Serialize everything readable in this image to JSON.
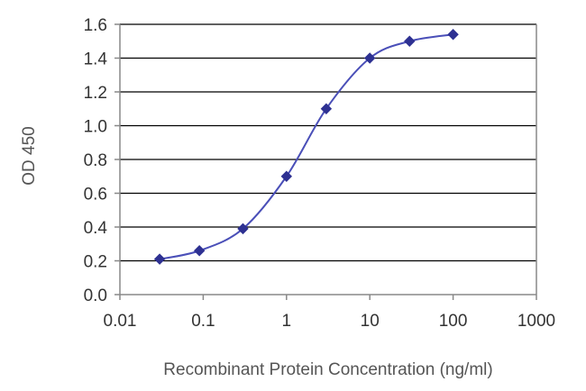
{
  "chart_data": {
    "type": "scatter",
    "title": "",
    "xlabel": "Recombinant Protein Concentration (ng/ml)",
    "ylabel": "OD 450",
    "x_scale": "log",
    "xlim": [
      0.01,
      1000
    ],
    "ylim": [
      0.0,
      1.6
    ],
    "x_ticks": [
      "0.01",
      "0.1",
      "1",
      "10",
      "100",
      "1000"
    ],
    "x_tick_values": [
      0.01,
      0.1,
      1,
      10,
      100,
      1000
    ],
    "y_ticks": [
      "0.0",
      "0.2",
      "0.4",
      "0.6",
      "0.8",
      "1.0",
      "1.2",
      "1.4",
      "1.6"
    ],
    "y_tick_values": [
      0.0,
      0.2,
      0.4,
      0.6,
      0.8,
      1.0,
      1.2,
      1.4,
      1.6
    ],
    "grid": "horizontal",
    "legend": "none",
    "fit_curve": "sigmoidal",
    "series": [
      {
        "x": [
          0.03,
          0.09,
          0.3,
          1,
          3,
          10,
          30,
          100
        ],
        "y": [
          0.21,
          0.26,
          0.39,
          0.7,
          1.1,
          1.4,
          1.5,
          1.54
        ],
        "color": "#2e3192"
      }
    ],
    "colors": {
      "marker": "#2e3192",
      "curve": "#4a4fb8",
      "grid": "#000000",
      "axis": "#888888"
    }
  }
}
